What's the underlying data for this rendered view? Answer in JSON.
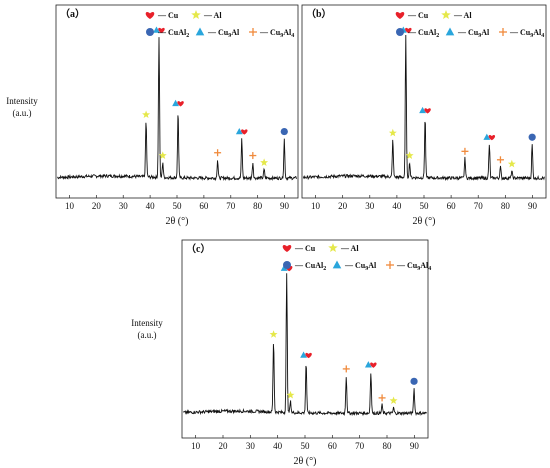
{
  "colors": {
    "Cu": "#e8202a",
    "Al": "#e5e84a",
    "CuAl2": "#3a66b3",
    "Cu9Al": "#2aa6dc",
    "Cu9Al4": "#f08a3c",
    "pattern": "#111111"
  },
  "legend": [
    {
      "phase": "Cu",
      "icon": "heart-icon",
      "label": "— Cu"
    },
    {
      "phase": "Al",
      "icon": "star-icon",
      "label": "— Al"
    },
    {
      "phase": "CuAl2",
      "icon": "circle-icon",
      "label": "— CuAl",
      "sub": "2"
    },
    {
      "phase": "Cu9Al",
      "icon": "triangle-icon",
      "label": "— Cu",
      "sub": "9",
      "tail": "Al"
    },
    {
      "phase": "Cu9Al4",
      "icon": "plus-icon",
      "label": "— Cu",
      "sub": "9",
      "tail": "Al",
      "sub2": "4"
    }
  ],
  "chart_data": [
    {
      "type": "line",
      "panel_label": "（a）",
      "ylabel": [
        "Intensity",
        "(a.u.)"
      ],
      "xlabel": "2θ (°)",
      "xlim": [
        5,
        95
      ],
      "xticks": [
        10,
        20,
        30,
        40,
        50,
        60,
        70,
        80,
        90
      ],
      "ylim": [
        0,
        1
      ],
      "peaks": [
        {
          "x": 38.5,
          "y": 0.4,
          "markers": [
            "Al"
          ]
        },
        {
          "x": 43.3,
          "y": 1.0,
          "markers": [
            "Cu9Al",
            "Cu"
          ]
        },
        {
          "x": 44.7,
          "y": 0.11,
          "markers": [
            "Al"
          ]
        },
        {
          "x": 50.4,
          "y": 0.48,
          "markers": [
            "Cu9Al",
            "Cu"
          ]
        },
        {
          "x": 65.1,
          "y": 0.13,
          "markers": [
            "Cu9Al4"
          ]
        },
        {
          "x": 74.1,
          "y": 0.28,
          "markers": [
            "Cu9Al",
            "Cu"
          ]
        },
        {
          "x": 78.2,
          "y": 0.11,
          "markers": [
            "Cu9Al4"
          ]
        },
        {
          "x": 82.4,
          "y": 0.06,
          "markers": [
            "Al"
          ]
        },
        {
          "x": 89.9,
          "y": 0.28,
          "markers": [
            "CuAl2"
          ]
        }
      ]
    },
    {
      "type": "line",
      "panel_label": "（b）",
      "ylabel": [],
      "xlabel": "2θ (°)",
      "xlim": [
        5,
        95
      ],
      "xticks": [
        10,
        20,
        30,
        40,
        50,
        60,
        70,
        80,
        90
      ],
      "ylim": [
        0,
        1
      ],
      "peaks": [
        {
          "x": 38.5,
          "y": 0.27,
          "markers": [
            "Al"
          ]
        },
        {
          "x": 43.3,
          "y": 1.0,
          "markers": [
            "Cu9Al",
            "Cu"
          ]
        },
        {
          "x": 44.7,
          "y": 0.11,
          "markers": [
            "Al"
          ]
        },
        {
          "x": 50.4,
          "y": 0.43,
          "markers": [
            "Cu9Al",
            "Cu"
          ]
        },
        {
          "x": 65.1,
          "y": 0.14,
          "markers": [
            "Cu9Al4"
          ]
        },
        {
          "x": 74.1,
          "y": 0.24,
          "markers": [
            "Cu9Al",
            "Cu"
          ]
        },
        {
          "x": 78.2,
          "y": 0.08,
          "markers": [
            "Cu9Al4"
          ]
        },
        {
          "x": 82.4,
          "y": 0.05,
          "markers": [
            "Al"
          ]
        },
        {
          "x": 89.9,
          "y": 0.24,
          "markers": [
            "CuAl2"
          ]
        }
      ]
    },
    {
      "type": "line",
      "panel_label": "（c）",
      "ylabel": [
        "Intensity",
        "(a.u.)"
      ],
      "xlabel": "2θ (°)",
      "xlim": [
        5,
        95
      ],
      "xticks": [
        10,
        20,
        30,
        40,
        50,
        60,
        70,
        80,
        90
      ],
      "ylim": [
        0,
        1
      ],
      "peaks": [
        {
          "x": 38.5,
          "y": 0.52,
          "markers": [
            "Al"
          ]
        },
        {
          "x": 43.3,
          "y": 1.0,
          "markers": [
            "Cu9Al",
            "Cu"
          ]
        },
        {
          "x": 44.7,
          "y": 0.08,
          "markers": [
            "Al"
          ]
        },
        {
          "x": 50.4,
          "y": 0.37,
          "markers": [
            "Cu9Al",
            "Cu"
          ]
        },
        {
          "x": 65.1,
          "y": 0.27,
          "markers": [
            "Cu9Al4"
          ]
        },
        {
          "x": 74.1,
          "y": 0.3,
          "markers": [
            "Cu9Al",
            "Cu"
          ]
        },
        {
          "x": 78.2,
          "y": 0.06,
          "markers": [
            "Cu9Al4"
          ]
        },
        {
          "x": 82.4,
          "y": 0.04,
          "markers": [
            "Al"
          ]
        },
        {
          "x": 89.9,
          "y": 0.18,
          "markers": [
            "CuAl2"
          ]
        }
      ]
    }
  ]
}
